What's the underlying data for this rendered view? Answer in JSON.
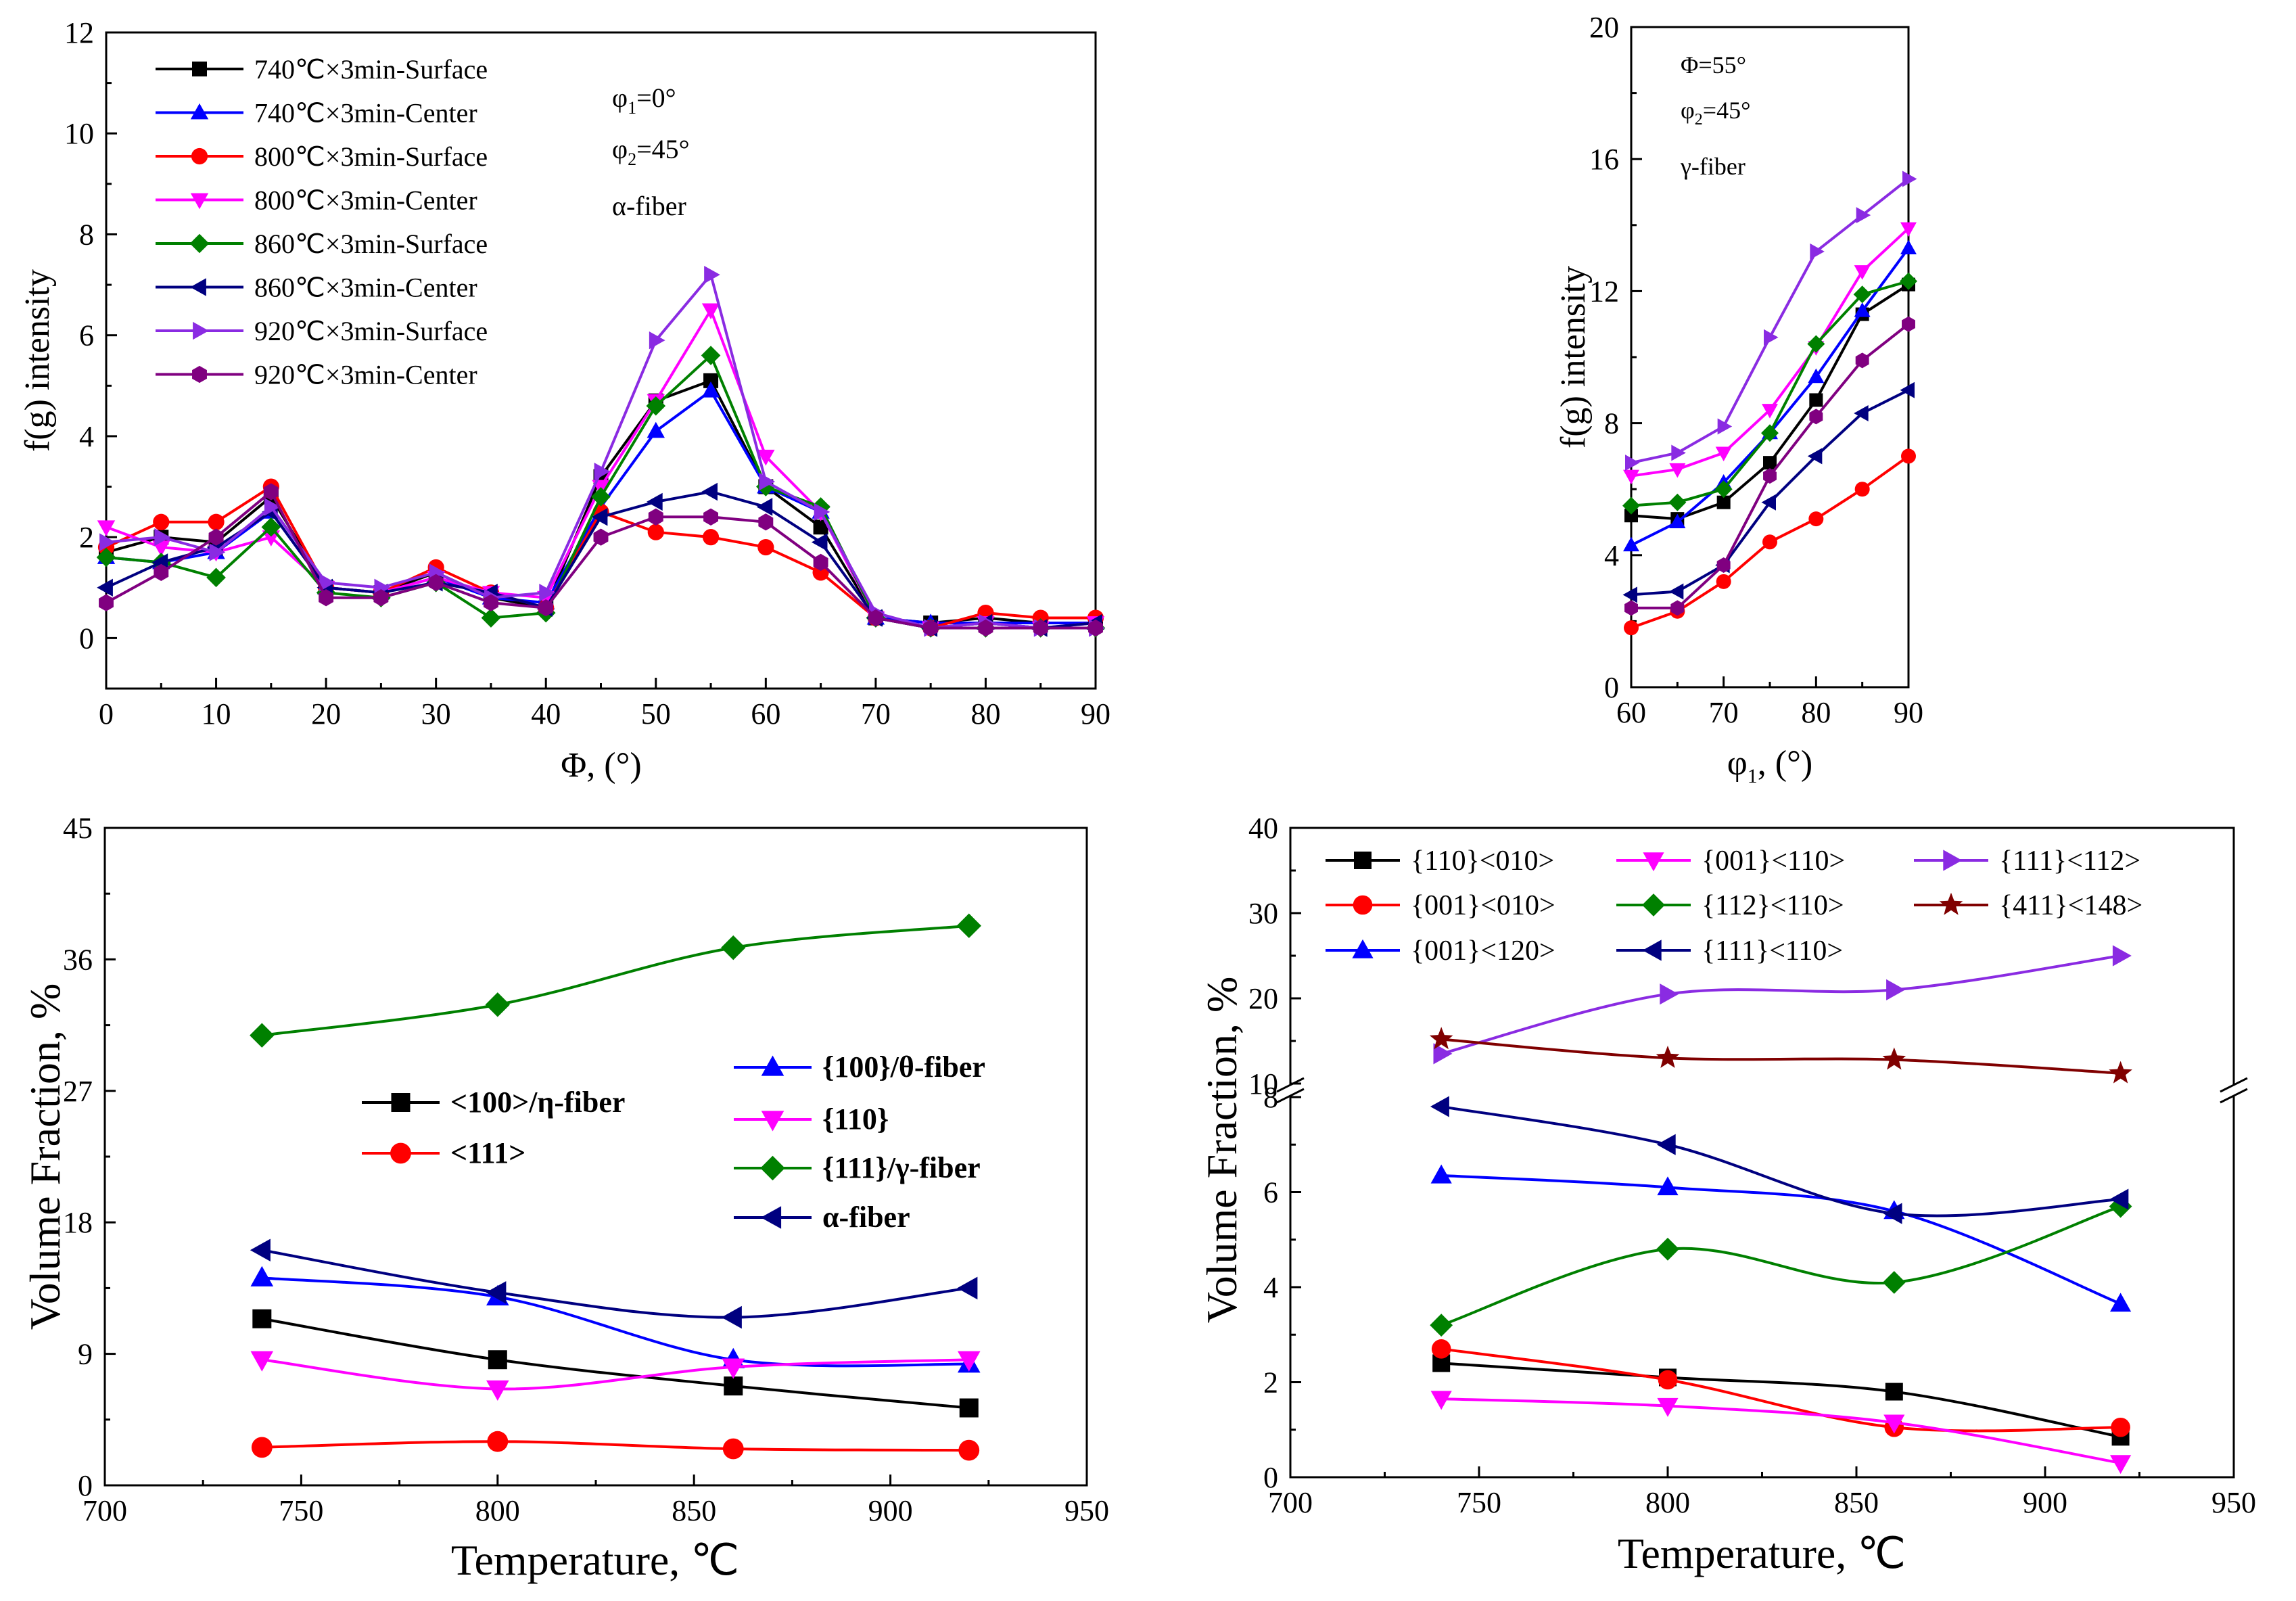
{
  "chart_data": [
    {
      "id": "a",
      "type": "line",
      "xlabel": "Φ, (°)",
      "ylabel": "f(g) intensity",
      "xlim": [
        0,
        90
      ],
      "ylim": [
        -1,
        12
      ],
      "xticks": [
        0,
        10,
        20,
        30,
        40,
        50,
        60,
        70,
        80,
        90
      ],
      "yticks": [
        0,
        2,
        4,
        6,
        8,
        10,
        12
      ],
      "annotations": [
        "φ1=0°",
        "φ2=45°",
        "α-fiber"
      ],
      "x": [
        0,
        5,
        10,
        15,
        20,
        25,
        30,
        35,
        40,
        45,
        50,
        55,
        60,
        65,
        70,
        75,
        80,
        85,
        90
      ],
      "series": [
        {
          "name": "740℃×3min-Surface",
          "color": "#000000",
          "marker": "square",
          "values": [
            1.7,
            2.0,
            1.9,
            2.8,
            1.0,
            0.9,
            1.3,
            0.8,
            0.6,
            3.2,
            4.7,
            5.1,
            3.0,
            2.2,
            0.4,
            0.3,
            0.4,
            0.3,
            0.3
          ]
        },
        {
          "name": "740℃×3min-Center",
          "color": "#0000ff",
          "marker": "triangle-up",
          "values": [
            1.6,
            1.5,
            1.7,
            2.5,
            1.0,
            0.9,
            1.2,
            0.8,
            0.7,
            2.6,
            4.1,
            4.9,
            3.0,
            2.5,
            0.4,
            0.3,
            0.3,
            0.3,
            0.3
          ]
        },
        {
          "name": "800℃×3min-Surface",
          "color": "#ff0000",
          "marker": "circle",
          "values": [
            1.8,
            2.3,
            2.3,
            3.0,
            1.0,
            0.9,
            1.4,
            0.9,
            0.6,
            2.5,
            2.1,
            2.0,
            1.8,
            1.3,
            0.4,
            0.2,
            0.5,
            0.4,
            0.4
          ]
        },
        {
          "name": "800℃×3min-Center",
          "color": "#ff00ff",
          "marker": "triangle-down",
          "values": [
            2.2,
            1.8,
            1.7,
            2.0,
            1.0,
            0.9,
            1.2,
            0.9,
            0.8,
            3.0,
            4.7,
            6.5,
            3.6,
            2.5,
            0.4,
            0.2,
            0.3,
            0.2,
            0.3
          ]
        },
        {
          "name": "860℃×3min-Surface",
          "color": "#008000",
          "marker": "diamond",
          "values": [
            1.6,
            1.5,
            1.2,
            2.2,
            0.9,
            0.8,
            1.1,
            0.4,
            0.5,
            2.8,
            4.6,
            5.6,
            3.0,
            2.6,
            0.4,
            0.2,
            0.2,
            0.2,
            0.2
          ]
        },
        {
          "name": "860℃×3min-Center",
          "color": "#000080",
          "marker": "triangle-left",
          "values": [
            1.0,
            1.5,
            1.8,
            2.5,
            1.0,
            0.9,
            1.1,
            0.9,
            0.6,
            2.4,
            2.7,
            2.9,
            2.6,
            1.9,
            0.4,
            0.2,
            0.3,
            0.2,
            0.3
          ]
        },
        {
          "name": "920℃×3min-Surface",
          "color": "#8a2be2",
          "marker": "triangle-right",
          "values": [
            1.9,
            2.0,
            1.7,
            2.6,
            1.1,
            1.0,
            1.3,
            0.8,
            0.9,
            3.3,
            5.9,
            7.2,
            3.1,
            2.5,
            0.5,
            0.2,
            0.3,
            0.2,
            0.2
          ]
        },
        {
          "name": "920℃×3min-Center",
          "color": "#800080",
          "marker": "hexagon",
          "values": [
            0.7,
            1.3,
            2.0,
            2.9,
            0.8,
            0.8,
            1.1,
            0.7,
            0.6,
            2.0,
            2.4,
            2.4,
            2.3,
            1.5,
            0.4,
            0.2,
            0.2,
            0.2,
            0.2
          ]
        }
      ]
    },
    {
      "id": "b",
      "type": "line",
      "xlabel": "φ1, (°)",
      "ylabel": "f(g) intensity",
      "xlim": [
        60,
        90
      ],
      "ylim": [
        0,
        20
      ],
      "xticks": [
        60,
        70,
        80,
        90
      ],
      "yticks": [
        0,
        4,
        8,
        12,
        16,
        20
      ],
      "annotations": [
        "Φ=55°",
        "φ2=45°",
        "γ-fiber"
      ],
      "x": [
        60,
        65,
        70,
        75,
        80,
        85,
        90
      ],
      "series": [
        {
          "name": "740℃×3min-Surface",
          "color": "#000000",
          "marker": "square",
          "values": [
            5.2,
            5.1,
            5.6,
            6.8,
            8.7,
            11.3,
            12.2
          ]
        },
        {
          "name": "740℃×3min-Center",
          "color": "#0000ff",
          "marker": "triangle-up",
          "values": [
            4.3,
            5.0,
            6.2,
            7.7,
            9.4,
            11.4,
            13.3
          ]
        },
        {
          "name": "800℃×3min-Surface",
          "color": "#ff0000",
          "marker": "circle",
          "values": [
            1.8,
            2.3,
            3.2,
            4.4,
            5.1,
            6.0,
            7.0
          ]
        },
        {
          "name": "800℃×3min-Center",
          "color": "#ff00ff",
          "marker": "triangle-down",
          "values": [
            6.4,
            6.6,
            7.1,
            8.4,
            10.3,
            12.6,
            13.9
          ]
        },
        {
          "name": "860℃×3min-Surface",
          "color": "#008000",
          "marker": "diamond",
          "values": [
            5.5,
            5.6,
            6.0,
            7.7,
            10.4,
            11.9,
            12.3
          ]
        },
        {
          "name": "860℃×3min-Center",
          "color": "#000080",
          "marker": "triangle-left",
          "values": [
            2.8,
            2.9,
            3.7,
            5.6,
            7.0,
            8.3,
            9.0
          ]
        },
        {
          "name": "920℃×3min-Surface",
          "color": "#8a2be2",
          "marker": "triangle-right",
          "values": [
            6.8,
            7.1,
            7.9,
            10.6,
            13.2,
            14.3,
            15.4
          ]
        },
        {
          "name": "920℃×3min-Center",
          "color": "#800080",
          "marker": "hexagon",
          "values": [
            2.4,
            2.4,
            3.7,
            6.4,
            8.2,
            9.9,
            11.0
          ]
        }
      ]
    },
    {
      "id": "c",
      "type": "line",
      "xlabel": "Temperature, ℃",
      "ylabel": "Volume Fraction, %",
      "xlim": [
        700,
        950
      ],
      "ylim": [
        0,
        45
      ],
      "xticks": [
        700,
        750,
        800,
        850,
        900,
        950
      ],
      "yticks": [
        0,
        9,
        18,
        27,
        36,
        45
      ],
      "x": [
        740,
        800,
        860,
        920
      ],
      "series": [
        {
          "name": "<100>/η-fiber",
          "color": "#000000",
          "marker": "square",
          "values": [
            11.4,
            8.6,
            6.8,
            5.3
          ]
        },
        {
          "name": "<111>",
          "color": "#ff0000",
          "marker": "circle",
          "values": [
            2.6,
            3.0,
            2.5,
            2.4
          ]
        },
        {
          "name": "{100}/θ-fiber",
          "color": "#0000ff",
          "marker": "triangle-up",
          "values": [
            14.2,
            12.9,
            8.6,
            8.3
          ]
        },
        {
          "name": "{110}",
          "color": "#ff00ff",
          "marker": "triangle-down",
          "values": [
            8.6,
            6.6,
            8.1,
            8.6
          ]
        },
        {
          "name": "{111}/γ-fiber",
          "color": "#008000",
          "marker": "diamond",
          "values": [
            30.8,
            32.9,
            36.8,
            38.3
          ]
        },
        {
          "name": "α-fiber",
          "color": "#000080",
          "marker": "triangle-left",
          "values": [
            16.1,
            13.2,
            11.5,
            13.5
          ]
        }
      ]
    },
    {
      "id": "d",
      "type": "line",
      "xlabel": "Temperature, ℃",
      "ylabel": "Volume Fraction, %",
      "xlim": [
        700,
        950
      ],
      "ylim_upper": [
        10,
        40
      ],
      "ylim_lower": [
        0,
        8
      ],
      "yticks_upper": [
        10,
        20,
        30,
        40
      ],
      "yticks_lower": [
        0,
        2,
        4,
        6,
        8
      ],
      "xticks": [
        700,
        750,
        800,
        850,
        900,
        950
      ],
      "x": [
        740,
        800,
        860,
        920
      ],
      "series": [
        {
          "name": "{110}<010>",
          "color": "#000000",
          "marker": "square",
          "values": [
            2.4,
            2.1,
            1.8,
            0.85
          ]
        },
        {
          "name": "{001}<010>",
          "color": "#ff0000",
          "marker": "circle",
          "values": [
            2.7,
            2.05,
            1.05,
            1.05
          ]
        },
        {
          "name": "{001}<120>",
          "color": "#0000ff",
          "marker": "triangle-up",
          "values": [
            6.35,
            6.1,
            5.6,
            3.65
          ]
        },
        {
          "name": "{001}<110>",
          "color": "#ff00ff",
          "marker": "triangle-down",
          "values": [
            1.65,
            1.5,
            1.15,
            0.3
          ]
        },
        {
          "name": "{112}<110>",
          "color": "#008000",
          "marker": "diamond",
          "values": [
            3.2,
            4.8,
            4.1,
            5.7
          ]
        },
        {
          "name": "{111}<110>",
          "color": "#000080",
          "marker": "triangle-left",
          "values": [
            7.8,
            7.0,
            5.55,
            5.85
          ]
        },
        {
          "name": "{111}<112>",
          "color": "#8a2be2",
          "marker": "triangle-right",
          "values": [
            13.5,
            20.5,
            21.0,
            25.0
          ]
        },
        {
          "name": "{411}<148>",
          "color": "#800000",
          "marker": "star",
          "values": [
            15.2,
            13.0,
            12.8,
            11.2
          ]
        }
      ]
    }
  ]
}
